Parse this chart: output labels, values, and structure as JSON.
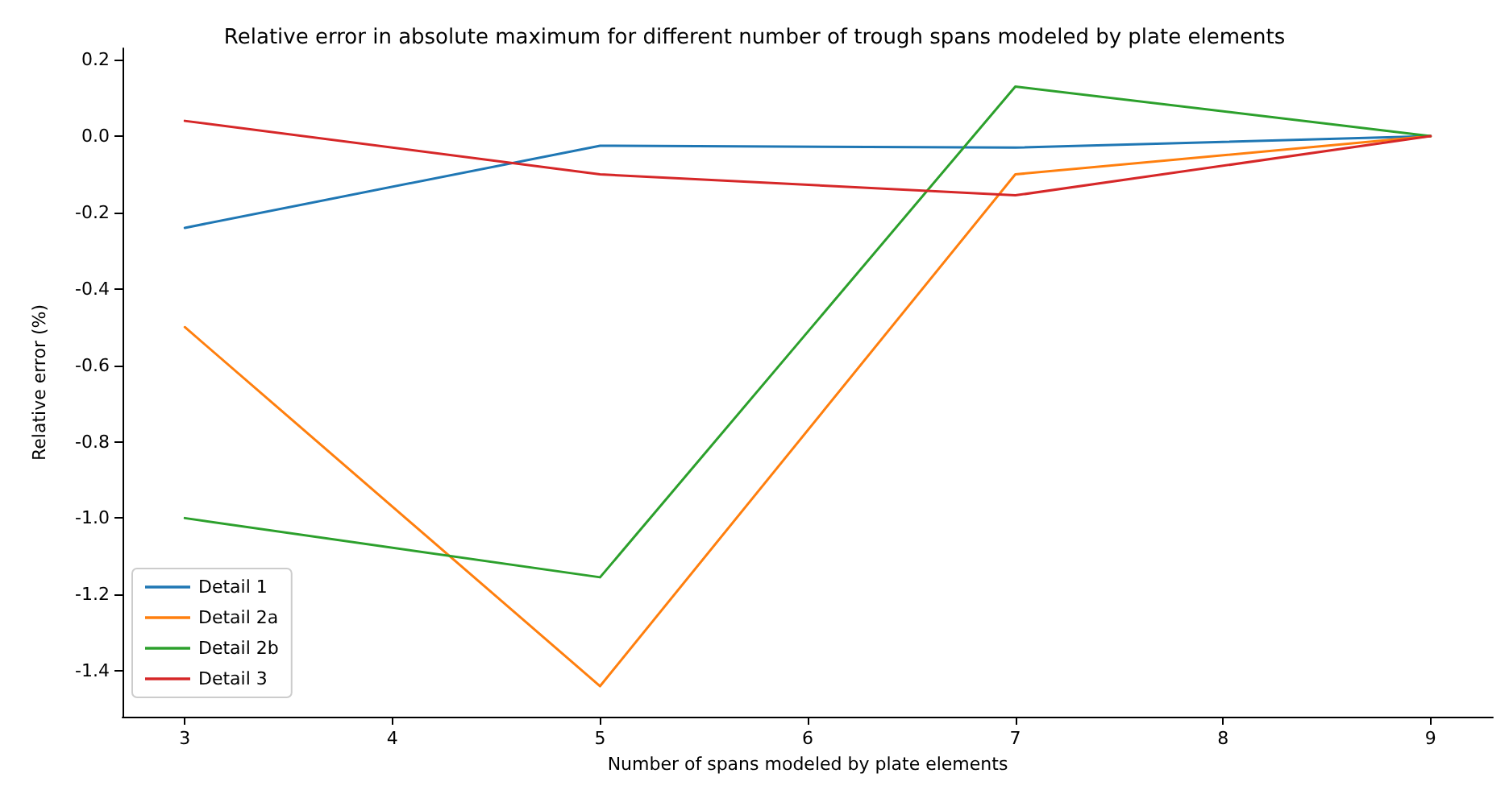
{
  "chart_data": {
    "type": "line",
    "title": "Relative error in absolute maximum for different number of trough spans modeled by plate elements",
    "xlabel": "Number of spans modeled by plate elements",
    "ylabel": "Relative error (%)",
    "x": [
      3,
      5,
      7,
      9
    ],
    "series": [
      {
        "name": "Detail 1",
        "color": "#1f77b4",
        "values": [
          -0.24,
          -0.025,
          -0.03,
          0
        ]
      },
      {
        "name": "Detail 2a",
        "color": "#ff7f0e",
        "values": [
          -0.5,
          -1.44,
          -0.1,
          0
        ]
      },
      {
        "name": "Detail 2b",
        "color": "#2ca02c",
        "values": [
          -1.0,
          -1.155,
          0.13,
          0
        ]
      },
      {
        "name": "Detail 3",
        "color": "#d62728",
        "values": [
          0.04,
          -0.1,
          -0.155,
          0
        ]
      }
    ],
    "xlim": [
      2.7,
      9.3
    ],
    "xticks": [
      3,
      4,
      5,
      6,
      7,
      8,
      9
    ],
    "ylim": [
      -1.52,
      0.23
    ],
    "yticks": [
      {
        "value": 0.2,
        "label": "0.2"
      },
      {
        "value": 0,
        "label": "0.0"
      },
      {
        "value": -0.2,
        "label": "-0.2"
      },
      {
        "value": -0.4,
        "label": "-0.4"
      },
      {
        "value": -0.6,
        "label": "-0.6"
      },
      {
        "value": -0.8,
        "label": "-0.8"
      },
      {
        "value": -1.0,
        "label": "-1.0"
      },
      {
        "value": -1.2,
        "label": "-1.2"
      },
      {
        "value": -1.4,
        "label": "-1.4"
      }
    ],
    "grid": false,
    "legend": "bottom left",
    "marker": "none",
    "line_style": "solid"
  }
}
